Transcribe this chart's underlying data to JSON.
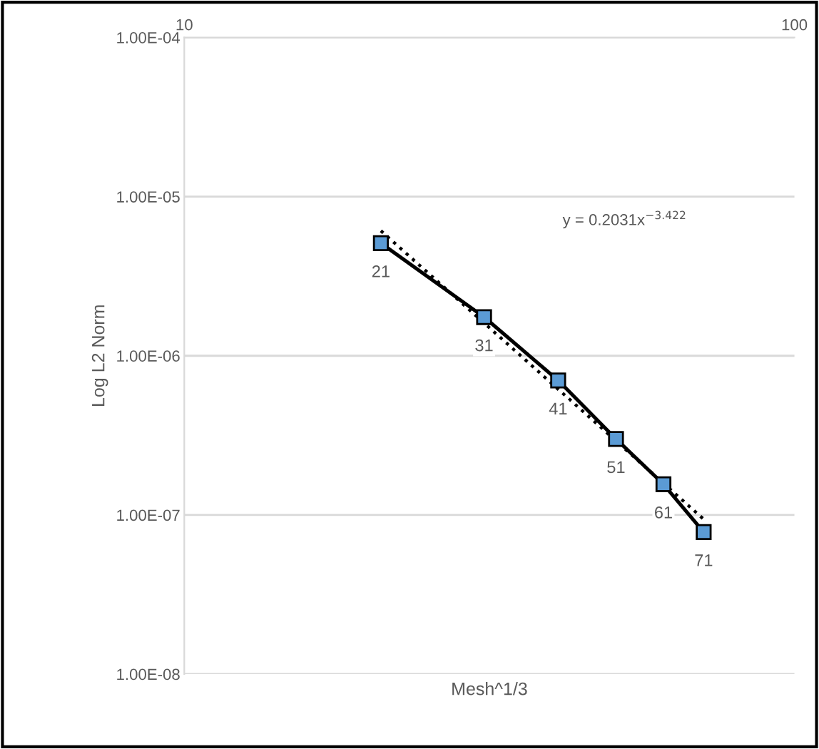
{
  "chart_data": {
    "type": "line",
    "xlabel": "Mesh^1/3",
    "ylabel": "Log L2 Norm",
    "log": "xy",
    "grid": "y",
    "xlim": [
      10,
      100
    ],
    "xticks": [
      10,
      100
    ],
    "ylim": [
      1e-08,
      0.0001
    ],
    "yticks": [
      {
        "value": 1e-08,
        "label": "1.00E-08"
      },
      {
        "value": 1e-07,
        "label": "1.00E-07"
      },
      {
        "value": 1e-06,
        "label": "1.00E-06"
      },
      {
        "value": 1e-05,
        "label": "1.00E-05"
      },
      {
        "value": 0.0001,
        "label": "1.00E-04"
      }
    ],
    "series": [
      {
        "color": "#000000",
        "marker": "square",
        "line_style": "solid",
        "x": [
          21,
          31,
          41,
          51,
          61,
          71
        ],
        "values": [
          5.1e-06,
          1.75e-06,
          7e-07,
          3e-07,
          1.56e-07,
          7.8e-08
        ]
      },
      {
        "color": "#000000",
        "marker": "none",
        "line_style": "dotted",
        "x": [
          21,
          71
        ],
        "values": [
          6.1e-06,
          9.4e-08
        ]
      }
    ],
    "annotations": [
      {
        "text": "21",
        "x": 21,
        "y": 5.1e-06
      },
      {
        "text": "31",
        "x": 31,
        "y": 1.75e-06
      },
      {
        "text": "41",
        "x": 41,
        "y": 7e-07
      },
      {
        "text": "51",
        "x": 51,
        "y": 3e-07
      },
      {
        "text": "61",
        "x": 61,
        "y": 1.56e-07
      },
      {
        "text": "71",
        "x": 71,
        "y": 7.8e-08
      },
      "y = 0.2031x$^{−3.422}$"
    ]
  }
}
